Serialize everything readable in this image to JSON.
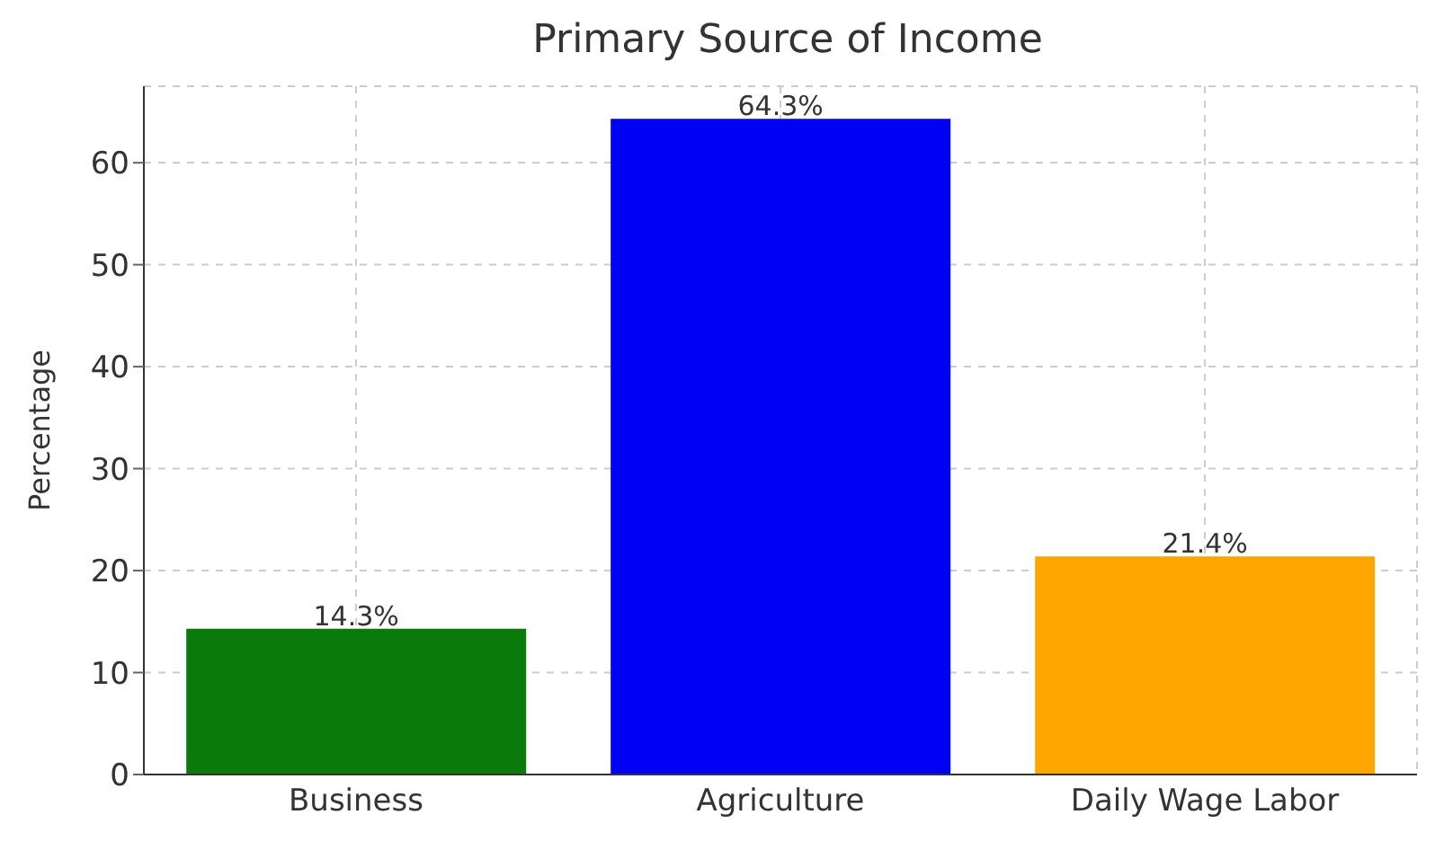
{
  "chart_data": {
    "type": "bar",
    "title": "Primary Source of Income",
    "ylabel": "Percentage",
    "categories": [
      "Business",
      "Agriculture",
      "Daily Wage Labor"
    ],
    "values": [
      14.3,
      64.3,
      21.4
    ],
    "colors": [
      "#0a7a0a",
      "#0000f5",
      "#ffa500"
    ],
    "value_labels": [
      "14.3%",
      "64.3%",
      "21.4%"
    ],
    "ylim": [
      0,
      67.5
    ],
    "yticks": [
      0,
      10,
      20,
      30,
      40,
      50,
      60
    ],
    "grid": true
  }
}
